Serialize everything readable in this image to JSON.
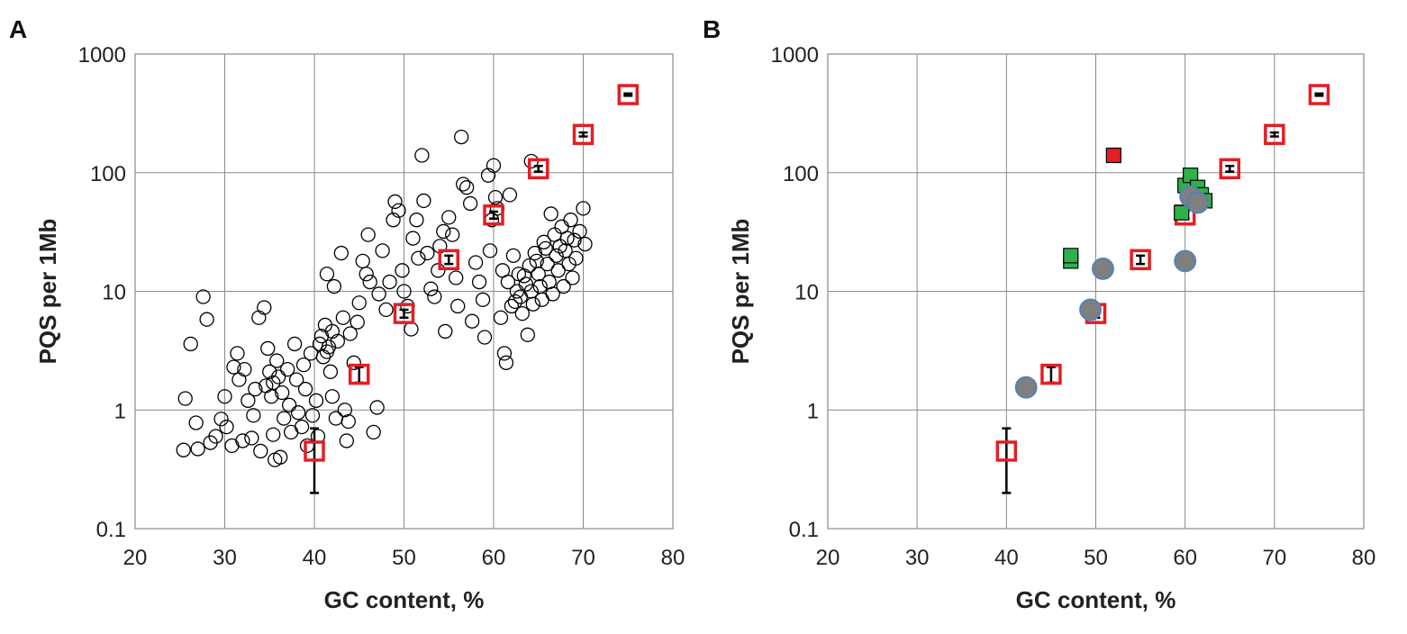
{
  "chart_data": [
    {
      "panel": "A",
      "type": "scatter",
      "xlabel": "GC content, %",
      "ylabel": "PQS per 1Mb",
      "xlim": [
        20,
        80
      ],
      "ylim": [
        0.1,
        1000
      ],
      "yscale": "log",
      "x_ticks": [
        "20",
        "30",
        "40",
        "50",
        "60",
        "70",
        "80"
      ],
      "y_ticks": [
        "0.1",
        "1",
        "10",
        "100",
        "1000"
      ],
      "grid": true,
      "legend": "none",
      "colors": {
        "open_circle": "#000000",
        "reference_square": "#e31e24",
        "error_bar": "#000000"
      },
      "series": [
        {
          "marker": "open-circle",
          "points": [
            [
              25.4,
              0.46
            ],
            [
              25.6,
              1.25
            ],
            [
              26.2,
              3.6
            ],
            [
              26.8,
              0.78
            ],
            [
              27,
              0.47
            ],
            [
              27.6,
              9
            ],
            [
              28,
              5.8
            ],
            [
              28.4,
              0.53
            ],
            [
              29,
              0.6
            ],
            [
              29.6,
              0.84
            ],
            [
              30,
              1.3
            ],
            [
              30.2,
              0.72
            ],
            [
              30.8,
              0.5
            ],
            [
              31,
              2.3
            ],
            [
              31.4,
              3
            ],
            [
              31.6,
              1.8
            ],
            [
              32,
              0.55
            ],
            [
              32.2,
              2.2
            ],
            [
              32.6,
              1.2
            ],
            [
              33,
              0.58
            ],
            [
              33.2,
              0.9
            ],
            [
              33.4,
              1.5
            ],
            [
              33.8,
              6
            ],
            [
              34,
              0.45
            ],
            [
              34.4,
              7.3
            ],
            [
              34.6,
              1.6
            ],
            [
              34.8,
              3.3
            ],
            [
              35,
              2.1
            ],
            [
              35.2,
              1.3
            ],
            [
              35.4,
              0.62
            ],
            [
              35.6,
              0.38
            ],
            [
              35.8,
              2.6
            ],
            [
              36,
              1.9
            ],
            [
              36.2,
              0.4
            ],
            [
              36.4,
              1.4
            ],
            [
              36.6,
              0.85
            ],
            [
              37,
              2.2
            ],
            [
              37.2,
              1.1
            ],
            [
              37.4,
              0.65
            ],
            [
              37.8,
              3.6
            ],
            [
              38,
              1.8
            ],
            [
              38.2,
              0.95
            ],
            [
              38.6,
              0.72
            ],
            [
              38.8,
              2.4
            ],
            [
              39,
              1.5
            ],
            [
              39.2,
              0.5
            ],
            [
              39.6,
              3
            ],
            [
              39.8,
              0.9
            ],
            [
              40.2,
              1.2
            ],
            [
              40.4,
              0.6
            ],
            [
              40.8,
              4.2
            ],
            [
              41,
              2.8
            ],
            [
              41.2,
              5.2
            ],
            [
              41.4,
              14
            ],
            [
              41.6,
              3.4
            ],
            [
              41.8,
              2.1
            ],
            [
              42,
              1.3
            ],
            [
              42.2,
              11
            ],
            [
              42.4,
              0.85
            ],
            [
              42.6,
              3.8
            ],
            [
              43,
              21
            ],
            [
              43.2,
              6
            ],
            [
              43.4,
              1
            ],
            [
              43.6,
              0.55
            ],
            [
              43.8,
              0.8
            ],
            [
              44,
              4.4
            ],
            [
              44.4,
              2.5
            ],
            [
              44.8,
              5.5
            ],
            [
              45,
              8
            ],
            [
              45.4,
              18
            ],
            [
              45.8,
              14
            ],
            [
              46,
              30
            ],
            [
              46.2,
              12
            ],
            [
              46.6,
              0.65
            ],
            [
              47,
              1.05
            ],
            [
              47.2,
              9.5
            ],
            [
              47.6,
              22
            ],
            [
              48,
              7
            ],
            [
              48.4,
              12
            ],
            [
              48.8,
              40
            ],
            [
              49,
              57
            ],
            [
              49.4,
              48
            ],
            [
              49.8,
              15
            ],
            [
              50,
              10
            ],
            [
              50.4,
              7.5
            ],
            [
              50.8,
              4.8
            ],
            [
              51,
              28
            ],
            [
              51.4,
              40
            ],
            [
              51.6,
              19
            ],
            [
              52,
              140
            ],
            [
              52.2,
              58
            ],
            [
              52.6,
              21
            ],
            [
              53,
              10.5
            ],
            [
              53.4,
              9
            ],
            [
              53.8,
              15
            ],
            [
              54,
              24
            ],
            [
              54.4,
              32
            ],
            [
              54.6,
              4.6
            ],
            [
              55,
              42
            ],
            [
              55.4,
              30
            ],
            [
              55.8,
              13
            ],
            [
              56,
              7.5
            ],
            [
              56.4,
              200
            ],
            [
              56.6,
              80
            ],
            [
              57,
              75
            ],
            [
              57.4,
              55
            ],
            [
              57.6,
              5.6
            ],
            [
              58,
              17.5
            ],
            [
              58.4,
              12
            ],
            [
              58.8,
              8.5
            ],
            [
              59,
              4.1
            ],
            [
              59.4,
              95
            ],
            [
              59.6,
              22
            ],
            [
              60,
              115
            ],
            [
              60.2,
              62
            ],
            [
              60.4,
              50
            ],
            [
              60.8,
              6
            ],
            [
              61,
              15
            ],
            [
              61.2,
              3
            ],
            [
              61.4,
              2.5
            ],
            [
              61.6,
              12
            ],
            [
              61.8,
              65
            ],
            [
              62,
              7.5
            ],
            [
              62.2,
              20
            ],
            [
              62.4,
              8.2
            ],
            [
              62.6,
              10
            ],
            [
              62.8,
              14
            ],
            [
              63,
              9
            ],
            [
              63.2,
              6.5
            ],
            [
              63.4,
              13.5
            ],
            [
              63.6,
              11.5
            ],
            [
              63.8,
              4.3
            ],
            [
              64,
              16.5
            ],
            [
              64.2,
              10
            ],
            [
              64.4,
              7.8
            ],
            [
              64.6,
              21
            ],
            [
              64.8,
              18
            ],
            [
              65,
              14
            ],
            [
              65.2,
              11
            ],
            [
              65.4,
              8.5
            ],
            [
              65.6,
              26
            ],
            [
              65.8,
              23
            ],
            [
              66,
              17
            ],
            [
              66.2,
              12
            ],
            [
              66.4,
              45
            ],
            [
              66.6,
              9.5
            ],
            [
              66.8,
              30
            ],
            [
              67,
              20
            ],
            [
              67.2,
              15
            ],
            [
              67.4,
              24
            ],
            [
              67.6,
              35
            ],
            [
              67.8,
              11
            ],
            [
              68,
              22
            ],
            [
              68.2,
              28
            ],
            [
              68.4,
              17
            ],
            [
              68.6,
              40
            ],
            [
              68.8,
              13
            ],
            [
              69,
              27
            ],
            [
              69.2,
              19
            ],
            [
              69.6,
              32
            ],
            [
              70,
              50
            ],
            [
              70.2,
              25
            ],
            [
              64.2,
              125
            ],
            [
              59.8,
              40
            ],
            [
              40.6,
              3.6
            ],
            [
              41.4,
              3.1
            ],
            [
              42,
              4.6
            ],
            [
              35.4,
              1.7
            ]
          ]
        },
        {
          "marker": "open-square",
          "points": [
            [
              40,
              0.45
            ],
            [
              45,
              2
            ],
            [
              50,
              6.5
            ],
            [
              55,
              18.5
            ],
            [
              60,
              44
            ],
            [
              65,
              108
            ],
            [
              70,
              210
            ],
            [
              75,
              455
            ]
          ],
          "error_bars": [
            [
              0.2,
              0.7
            ],
            [
              1.7,
              2.3
            ],
            [
              6,
              7
            ],
            [
              17,
              20
            ],
            [
              41,
              47
            ],
            [
              102,
              114
            ],
            [
              202,
              218
            ],
            [
              445,
              465
            ]
          ]
        }
      ]
    },
    {
      "panel": "B",
      "type": "scatter",
      "xlabel": "GC content, %",
      "ylabel": "PQS per 1Mb",
      "xlim": [
        20,
        80
      ],
      "ylim": [
        0.1,
        1000
      ],
      "yscale": "log",
      "x_ticks": [
        "20",
        "30",
        "40",
        "50",
        "60",
        "70",
        "80"
      ],
      "y_ticks": [
        "0.1",
        "1",
        "10",
        "100",
        "1000"
      ],
      "grid": true,
      "legend": "none",
      "colors": {
        "reference_square": "#e31e24",
        "filled_red_square": "#e31e24",
        "green_square": "#2eb14a",
        "gray_circle": "#7f7f7f",
        "gray_circle_edge": "#4f81bd",
        "error_bar": "#000000"
      },
      "series": [
        {
          "marker": "open-square",
          "points": [
            [
              40,
              0.45
            ],
            [
              45,
              2
            ],
            [
              50,
              6.5
            ],
            [
              55,
              18.5
            ],
            [
              60,
              44
            ],
            [
              65,
              108
            ],
            [
              70,
              210
            ],
            [
              75,
              455
            ]
          ],
          "error_bars": [
            [
              0.2,
              0.7
            ],
            [
              1.7,
              2.3
            ],
            [
              6,
              7
            ],
            [
              17,
              20
            ],
            [
              41,
              47
            ],
            [
              102,
              114
            ],
            [
              202,
              218
            ],
            [
              445,
              465
            ]
          ]
        },
        {
          "marker": "filled-red-square",
          "points": [
            [
              52,
              140
            ]
          ]
        },
        {
          "marker": "green-square",
          "points": [
            [
              47.2,
              18
            ],
            [
              47.2,
              20
            ],
            [
              59.6,
              46
            ],
            [
              60,
              78
            ],
            [
              60.6,
              95
            ],
            [
              61.4,
              75
            ],
            [
              61.8,
              65
            ],
            [
              62.2,
              58
            ]
          ]
        },
        {
          "marker": "gray-circle",
          "points": [
            [
              42.2,
              1.55
            ],
            [
              49.4,
              7
            ],
            [
              50.8,
              15.5
            ],
            [
              60,
              18
            ],
            [
              60.6,
              63
            ],
            [
              61.4,
              56
            ]
          ]
        }
      ]
    }
  ],
  "labels": {
    "panel_a": "A",
    "panel_b": "B"
  }
}
